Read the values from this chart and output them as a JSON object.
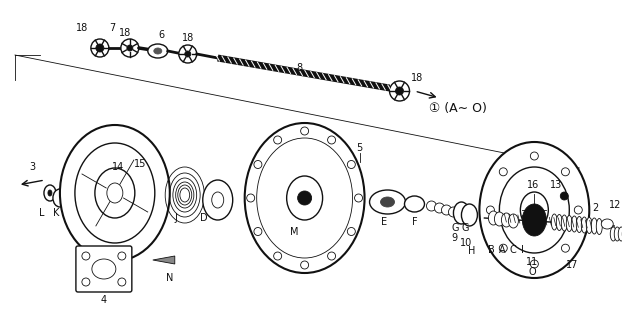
{
  "bg_color": "#ffffff",
  "line_color": "#111111",
  "annotation": "① (A∼ O)",
  "ann_x": 430,
  "ann_y": 108,
  "fig_w": 6.23,
  "fig_h": 3.2,
  "dpi": 100,
  "xlim": [
    0,
    623
  ],
  "ylim": [
    0,
    320
  ]
}
